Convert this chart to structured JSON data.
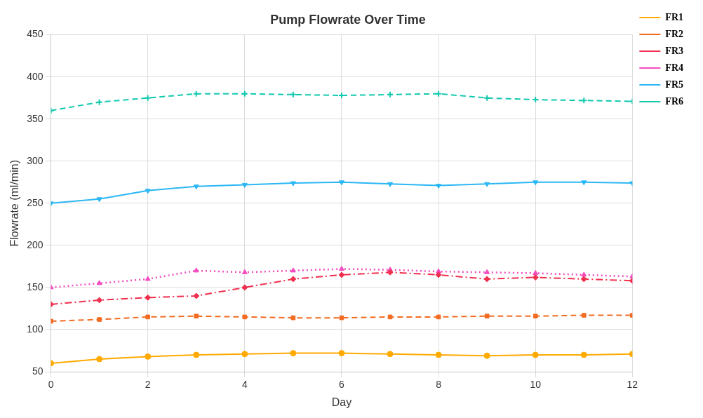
{
  "chart_data": {
    "type": "line",
    "title": "Pump Flowrate Over Time",
    "xlabel": "Day",
    "ylabel": "Flowrate (ml/min)",
    "x": [
      0,
      1,
      2,
      3,
      4,
      5,
      6,
      7,
      8,
      9,
      10,
      11,
      12
    ],
    "xlim": [
      0,
      12
    ],
    "xticks": [
      0,
      2,
      4,
      6,
      8,
      10,
      12
    ],
    "ylim": [
      50,
      450
    ],
    "yticks": [
      50,
      100,
      150,
      200,
      250,
      300,
      350,
      400,
      450
    ],
    "grid": true,
    "legend": "right",
    "series": [
      {
        "name": "FR1",
        "color": "#ffaa00",
        "marker": "circle",
        "line_style": "solid",
        "values": [
          60,
          65,
          68,
          70,
          71,
          72,
          72,
          71,
          70,
          69,
          70,
          70,
          71
        ]
      },
      {
        "name": "FR2",
        "color": "#f26b21",
        "marker": "square",
        "line_style": "dashed",
        "values": [
          110,
          112,
          115,
          116,
          115,
          114,
          114,
          115,
          115,
          116,
          116,
          117,
          117
        ]
      },
      {
        "name": "FR3",
        "color": "#f0304f",
        "marker": "diamond",
        "line_style": "dashdot",
        "values": [
          130,
          135,
          138,
          140,
          150,
          160,
          165,
          168,
          165,
          160,
          162,
          160,
          158
        ]
      },
      {
        "name": "FR4",
        "color": "#f54bc0",
        "marker": "triangle",
        "line_style": "dotted",
        "values": [
          150,
          155,
          160,
          170,
          168,
          170,
          172,
          171,
          169,
          168,
          167,
          165,
          163
        ]
      },
      {
        "name": "FR5",
        "color": "#2bb7f5",
        "marker": "triangle-down",
        "line_style": "solid",
        "values": [
          250,
          255,
          265,
          270,
          272,
          274,
          275,
          273,
          271,
          273,
          275,
          275,
          274
        ]
      },
      {
        "name": "FR6",
        "color": "#12c9b0",
        "marker": "cross",
        "line_style": "dashed",
        "values": [
          360,
          370,
          375,
          380,
          380,
          379,
          378,
          379,
          380,
          375,
          373,
          372,
          371
        ]
      }
    ]
  }
}
